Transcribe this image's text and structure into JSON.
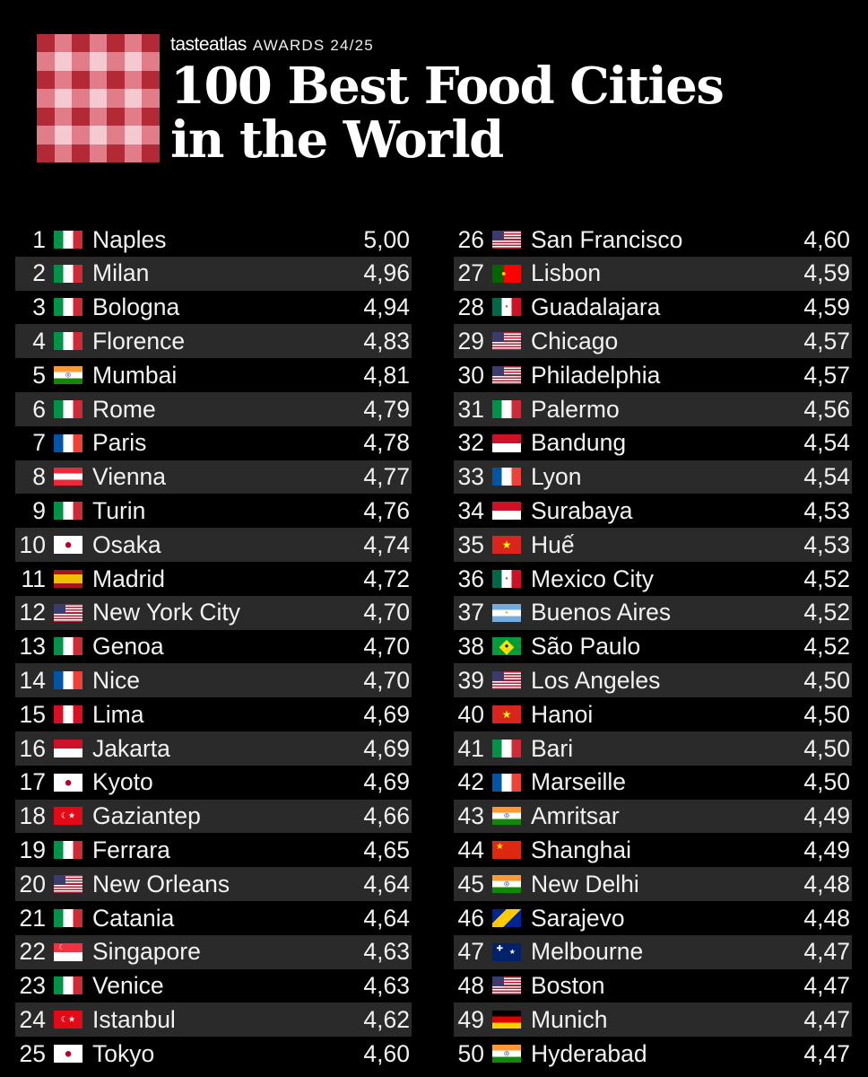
{
  "header": {
    "brand": "tasteatlas",
    "awards": "AWARDS 24/25",
    "title_line1": "100 Best Food Cities",
    "title_line2": "in the World"
  },
  "colors": {
    "background": "#000000",
    "row_alt": "#2a2a2a",
    "logo_red": "#b22a36",
    "logo_pink": "#e07d88",
    "logo_light": "#f4c9cf"
  },
  "rankings": [
    {
      "rank": "1",
      "flag": "it",
      "city": "Naples",
      "score": "5,00"
    },
    {
      "rank": "2",
      "flag": "it",
      "city": "Milan",
      "score": "4,96"
    },
    {
      "rank": "3",
      "flag": "it",
      "city": "Bologna",
      "score": "4,94"
    },
    {
      "rank": "4",
      "flag": "it",
      "city": "Florence",
      "score": "4,83"
    },
    {
      "rank": "5",
      "flag": "in",
      "city": "Mumbai",
      "score": "4,81"
    },
    {
      "rank": "6",
      "flag": "it",
      "city": "Rome",
      "score": "4,79"
    },
    {
      "rank": "7",
      "flag": "fr",
      "city": "Paris",
      "score": "4,78"
    },
    {
      "rank": "8",
      "flag": "at",
      "city": "Vienna",
      "score": "4,77"
    },
    {
      "rank": "9",
      "flag": "it",
      "city": "Turin",
      "score": "4,76"
    },
    {
      "rank": "10",
      "flag": "jp",
      "city": "Osaka",
      "score": "4,74"
    },
    {
      "rank": "11",
      "flag": "es",
      "city": "Madrid",
      "score": "4,72"
    },
    {
      "rank": "12",
      "flag": "us",
      "city": "New York City",
      "score": "4,70"
    },
    {
      "rank": "13",
      "flag": "it",
      "city": "Genoa",
      "score": "4,70"
    },
    {
      "rank": "14",
      "flag": "fr",
      "city": "Nice",
      "score": "4,70"
    },
    {
      "rank": "15",
      "flag": "pe",
      "city": "Lima",
      "score": "4,69"
    },
    {
      "rank": "16",
      "flag": "id",
      "city": "Jakarta",
      "score": "4,69"
    },
    {
      "rank": "17",
      "flag": "jp",
      "city": "Kyoto",
      "score": "4,69"
    },
    {
      "rank": "18",
      "flag": "tr",
      "city": "Gaziantep",
      "score": "4,66"
    },
    {
      "rank": "19",
      "flag": "it",
      "city": "Ferrara",
      "score": "4,65"
    },
    {
      "rank": "20",
      "flag": "us",
      "city": "New Orleans",
      "score": "4,64"
    },
    {
      "rank": "21",
      "flag": "it",
      "city": "Catania",
      "score": "4,64"
    },
    {
      "rank": "22",
      "flag": "sg",
      "city": "Singapore",
      "score": "4,63"
    },
    {
      "rank": "23",
      "flag": "it",
      "city": "Venice",
      "score": "4,63"
    },
    {
      "rank": "24",
      "flag": "tr",
      "city": "Istanbul",
      "score": "4,62"
    },
    {
      "rank": "25",
      "flag": "jp",
      "city": "Tokyo",
      "score": "4,60"
    },
    {
      "rank": "26",
      "flag": "us",
      "city": "San Francisco",
      "score": "4,60"
    },
    {
      "rank": "27",
      "flag": "pt",
      "city": "Lisbon",
      "score": "4,59"
    },
    {
      "rank": "28",
      "flag": "mx",
      "city": "Guadalajara",
      "score": "4,59"
    },
    {
      "rank": "29",
      "flag": "us",
      "city": "Chicago",
      "score": "4,57"
    },
    {
      "rank": "30",
      "flag": "us",
      "city": "Philadelphia",
      "score": "4,57"
    },
    {
      "rank": "31",
      "flag": "it",
      "city": "Palermo",
      "score": "4,56"
    },
    {
      "rank": "32",
      "flag": "id",
      "city": "Bandung",
      "score": "4,54"
    },
    {
      "rank": "33",
      "flag": "fr",
      "city": "Lyon",
      "score": "4,54"
    },
    {
      "rank": "34",
      "flag": "id",
      "city": "Surabaya",
      "score": "4,53"
    },
    {
      "rank": "35",
      "flag": "vn",
      "city": "Huế",
      "score": "4,53"
    },
    {
      "rank": "36",
      "flag": "mx",
      "city": "Mexico City",
      "score": "4,52"
    },
    {
      "rank": "37",
      "flag": "ar",
      "city": "Buenos Aires",
      "score": "4,52"
    },
    {
      "rank": "38",
      "flag": "br",
      "city": "São Paulo",
      "score": "4,52"
    },
    {
      "rank": "39",
      "flag": "us",
      "city": "Los Angeles",
      "score": "4,50"
    },
    {
      "rank": "40",
      "flag": "vn",
      "city": "Hanoi",
      "score": "4,50"
    },
    {
      "rank": "41",
      "flag": "it",
      "city": "Bari",
      "score": "4,50"
    },
    {
      "rank": "42",
      "flag": "fr",
      "city": "Marseille",
      "score": "4,50"
    },
    {
      "rank": "43",
      "flag": "in",
      "city": "Amritsar",
      "score": "4,49"
    },
    {
      "rank": "44",
      "flag": "cn",
      "city": "Shanghai",
      "score": "4,49"
    },
    {
      "rank": "45",
      "flag": "in",
      "city": "New Delhi",
      "score": "4,48"
    },
    {
      "rank": "46",
      "flag": "ba",
      "city": "Sarajevo",
      "score": "4,48"
    },
    {
      "rank": "47",
      "flag": "au",
      "city": "Melbourne",
      "score": "4,47"
    },
    {
      "rank": "48",
      "flag": "us",
      "city": "Boston",
      "score": "4,47"
    },
    {
      "rank": "49",
      "flag": "de",
      "city": "Munich",
      "score": "4,47"
    },
    {
      "rank": "50",
      "flag": "in",
      "city": "Hyderabad",
      "score": "4,47"
    }
  ]
}
